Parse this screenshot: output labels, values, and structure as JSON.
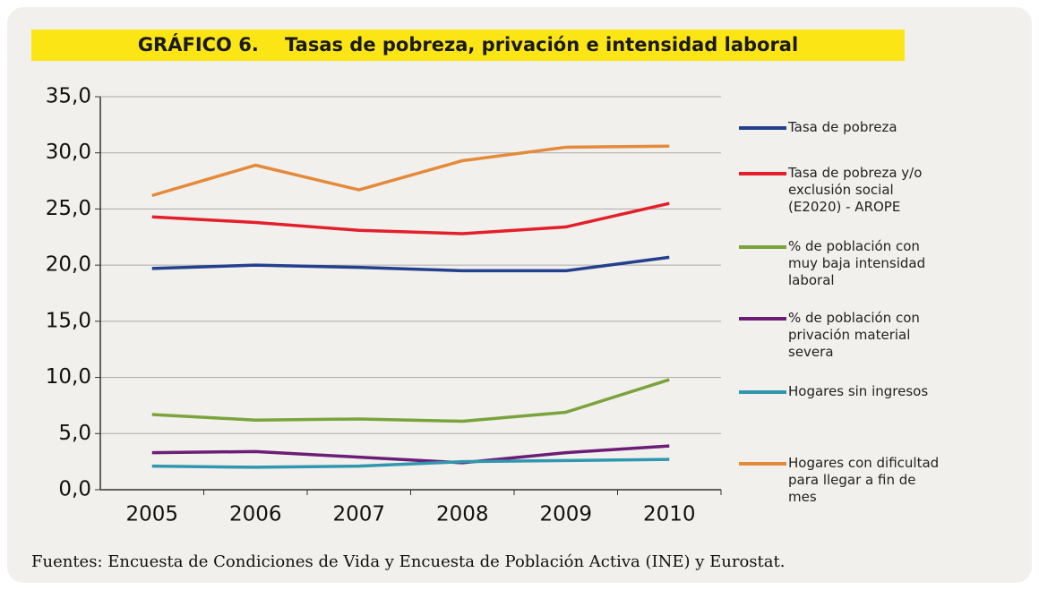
{
  "chart_data": {
    "type": "line",
    "title": "GRÁFICO 6.    Tasas de pobreza, privación e intensidad laboral",
    "source": "Fuentes: Encuesta de Condiciones de Vida y Encuesta de Población Activa (INE) y Eurostat.",
    "categories": [
      "2005",
      "2006",
      "2007",
      "2008",
      "2009",
      "2010"
    ],
    "series": [
      {
        "name": "Tasa de pobreza",
        "color": "#23408e",
        "values": [
          19.7,
          20.0,
          19.8,
          19.5,
          19.5,
          20.7
        ]
      },
      {
        "name": "Tasa de pobreza y/o exclusión social (E2020) - AROPE",
        "color": "#e3202a",
        "values": [
          24.3,
          23.8,
          23.1,
          22.8,
          23.4,
          25.5
        ]
      },
      {
        "name": "% de población con muy baja intensidad laboral",
        "color": "#7aa33b",
        "values": [
          6.7,
          6.2,
          6.3,
          6.1,
          6.9,
          9.8
        ]
      },
      {
        "name": "% de población con privación material severa",
        "color": "#6b1d77",
        "values": [
          3.3,
          3.4,
          2.9,
          2.4,
          3.3,
          3.9
        ]
      },
      {
        "name": "Hogares sin ingresos",
        "color": "#2f97b0",
        "values": [
          2.1,
          2.0,
          2.1,
          2.5,
          2.6,
          2.7
        ]
      },
      {
        "name": "Hogares con dificultad para llegar a fin de mes",
        "color": "#e48a3a",
        "values": [
          26.2,
          28.9,
          26.7,
          29.3,
          30.5,
          30.6
        ]
      }
    ],
    "ylim": [
      0,
      35
    ],
    "yticks": [
      {
        "value": 0,
        "label": "0,0"
      },
      {
        "value": 5,
        "label": "5,0"
      },
      {
        "value": 10,
        "label": "10,0"
      },
      {
        "value": 15,
        "label": "15,0"
      },
      {
        "value": 20,
        "label": "20,0"
      },
      {
        "value": 25,
        "label": "25,0"
      },
      {
        "value": 30,
        "label": "30,0"
      },
      {
        "value": 35,
        "label": "35,0"
      }
    ],
    "grid": true,
    "legend": "right"
  }
}
